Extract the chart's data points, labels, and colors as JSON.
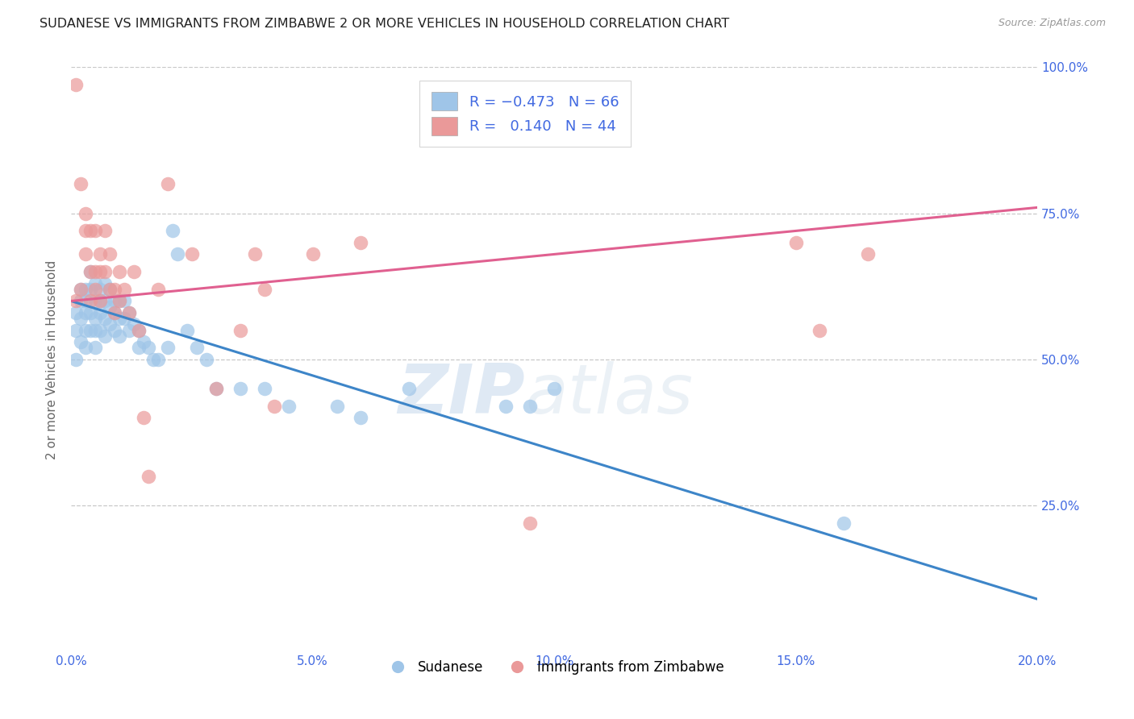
{
  "title": "SUDANESE VS IMMIGRANTS FROM ZIMBABWE 2 OR MORE VEHICLES IN HOUSEHOLD CORRELATION CHART",
  "source": "Source: ZipAtlas.com",
  "ylabel": "2 or more Vehicles in Household",
  "xmin": 0.0,
  "xmax": 0.2,
  "ymin": 0.0,
  "ymax": 1.0,
  "xtick_labels": [
    "0.0%",
    "5.0%",
    "10.0%",
    "15.0%",
    "20.0%"
  ],
  "xtick_vals": [
    0.0,
    0.05,
    0.1,
    0.15,
    0.2
  ],
  "ytick_labels": [
    "25.0%",
    "50.0%",
    "75.0%",
    "100.0%"
  ],
  "ytick_vals": [
    0.25,
    0.5,
    0.75,
    1.0
  ],
  "blue_R": -0.473,
  "blue_N": 66,
  "pink_R": 0.14,
  "pink_N": 44,
  "blue_color": "#9fc5e8",
  "pink_color": "#ea9999",
  "blue_line_color": "#3d85c8",
  "pink_line_color": "#e06090",
  "watermark_zip": "ZIP",
  "watermark_atlas": "atlas",
  "blue_line_x0": 0.0,
  "blue_line_y0": 0.6,
  "blue_line_x1": 0.2,
  "blue_line_y1": 0.09,
  "pink_line_x0": 0.0,
  "pink_line_y0": 0.6,
  "pink_line_x1": 0.2,
  "pink_line_y1": 0.76,
  "blue_scatter_x": [
    0.001,
    0.001,
    0.001,
    0.002,
    0.002,
    0.002,
    0.002,
    0.003,
    0.003,
    0.003,
    0.003,
    0.003,
    0.004,
    0.004,
    0.004,
    0.004,
    0.005,
    0.005,
    0.005,
    0.005,
    0.005,
    0.006,
    0.006,
    0.006,
    0.006,
    0.007,
    0.007,
    0.007,
    0.007,
    0.008,
    0.008,
    0.008,
    0.009,
    0.009,
    0.009,
    0.01,
    0.01,
    0.01,
    0.011,
    0.011,
    0.012,
    0.012,
    0.013,
    0.014,
    0.014,
    0.015,
    0.016,
    0.017,
    0.018,
    0.02,
    0.021,
    0.022,
    0.024,
    0.026,
    0.028,
    0.03,
    0.035,
    0.04,
    0.045,
    0.055,
    0.06,
    0.07,
    0.09,
    0.095,
    0.1,
    0.16
  ],
  "blue_scatter_y": [
    0.58,
    0.55,
    0.5,
    0.62,
    0.6,
    0.57,
    0.53,
    0.62,
    0.6,
    0.58,
    0.55,
    0.52,
    0.65,
    0.62,
    0.58,
    0.55,
    0.63,
    0.6,
    0.57,
    0.55,
    0.52,
    0.62,
    0.6,
    0.58,
    0.55,
    0.63,
    0.6,
    0.57,
    0.54,
    0.62,
    0.59,
    0.56,
    0.6,
    0.58,
    0.55,
    0.6,
    0.57,
    0.54,
    0.6,
    0.57,
    0.58,
    0.55,
    0.56,
    0.55,
    0.52,
    0.53,
    0.52,
    0.5,
    0.5,
    0.52,
    0.72,
    0.68,
    0.55,
    0.52,
    0.5,
    0.45,
    0.45,
    0.45,
    0.42,
    0.42,
    0.4,
    0.45,
    0.42,
    0.42,
    0.45,
    0.22
  ],
  "pink_scatter_x": [
    0.001,
    0.001,
    0.002,
    0.002,
    0.003,
    0.003,
    0.003,
    0.004,
    0.004,
    0.004,
    0.005,
    0.005,
    0.005,
    0.006,
    0.006,
    0.006,
    0.007,
    0.007,
    0.008,
    0.008,
    0.009,
    0.009,
    0.01,
    0.01,
    0.011,
    0.012,
    0.013,
    0.014,
    0.015,
    0.016,
    0.018,
    0.02,
    0.025,
    0.03,
    0.035,
    0.038,
    0.04,
    0.042,
    0.05,
    0.06,
    0.15,
    0.155,
    0.165,
    0.095
  ],
  "pink_scatter_y": [
    0.97,
    0.6,
    0.8,
    0.62,
    0.75,
    0.72,
    0.68,
    0.72,
    0.65,
    0.6,
    0.72,
    0.65,
    0.62,
    0.68,
    0.65,
    0.6,
    0.72,
    0.65,
    0.68,
    0.62,
    0.62,
    0.58,
    0.65,
    0.6,
    0.62,
    0.58,
    0.65,
    0.55,
    0.4,
    0.3,
    0.62,
    0.8,
    0.68,
    0.45,
    0.55,
    0.68,
    0.62,
    0.42,
    0.68,
    0.7,
    0.7,
    0.55,
    0.68,
    0.22
  ]
}
